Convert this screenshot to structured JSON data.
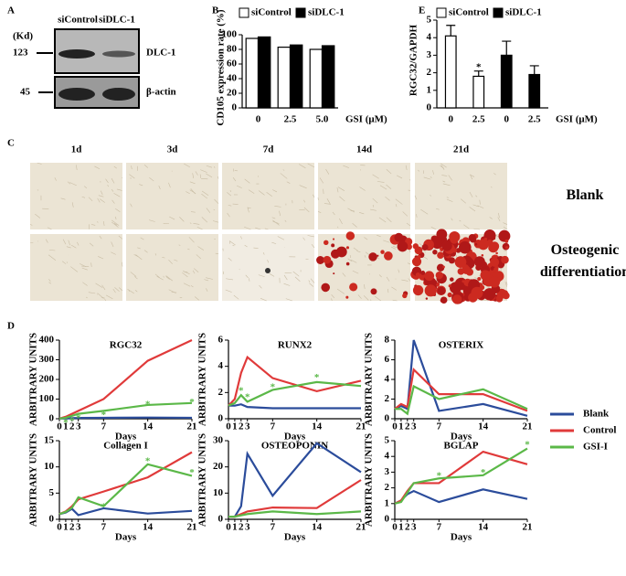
{
  "panel_labels": [
    "A",
    "B",
    "C",
    "D",
    "E"
  ],
  "blot": {
    "unit": "(Kd)",
    "columns": [
      "siControl",
      "siDLC-1"
    ],
    "markers": [
      "123",
      "45"
    ],
    "bands": [
      "DLC-1",
      "β-actin"
    ]
  },
  "micrographs": {
    "columns": [
      "1d",
      "3d",
      "7d",
      "14d",
      "21d"
    ],
    "rows": [
      "Blank",
      "Osteogenic differentiation"
    ]
  },
  "chart_data": [
    {
      "type": "bar",
      "ylabel": "CD105 expression rate (%)",
      "xlabel": "GSI (μM)",
      "categories": [
        "0",
        "2.5",
        "5.0"
      ],
      "ylim": [
        0,
        100
      ],
      "yticks": [
        0,
        20,
        40,
        60,
        80,
        100
      ],
      "series": [
        {
          "name": "siControl",
          "color": "#ffffff",
          "values": [
            95,
            83,
            80
          ]
        },
        {
          "name": "siDLC-1",
          "color": "#000000",
          "values": [
            97,
            86,
            85
          ]
        }
      ]
    },
    {
      "type": "bar",
      "ylabel": "RGC32/GAPDH",
      "xlabel": "GSI (μM)",
      "categories": [
        "0",
        "2.5",
        "0",
        "2.5"
      ],
      "ylim": [
        0,
        5
      ],
      "yticks": [
        0,
        1,
        2,
        3,
        4,
        5
      ],
      "series": [
        {
          "name": "siControl",
          "color": "#ffffff",
          "values": [
            4.1,
            1.8,
            null,
            null
          ],
          "errors": [
            0.6,
            0.3,
            null,
            null
          ]
        },
        {
          "name": "siDLC-1",
          "color": "#000000",
          "values": [
            null,
            null,
            3.0,
            1.9
          ],
          "errors": [
            null,
            null,
            0.8,
            0.5
          ]
        }
      ],
      "annotations": [
        {
          "text": "*",
          "x": 1,
          "y": 2.5
        }
      ]
    },
    {
      "type": "line",
      "title": "RGC32",
      "xlabel": "Days",
      "ylabel": "ARBITRARY UNITS",
      "x": [
        0,
        1,
        2,
        3,
        7,
        14,
        21
      ],
      "xlim": [
        0,
        21
      ],
      "xticks": [
        0,
        1,
        2,
        3,
        7,
        14,
        21
      ],
      "ylim": [
        0,
        400
      ],
      "yticks": [
        0,
        100,
        200,
        300,
        400
      ],
      "series": [
        {
          "name": "Blank",
          "color": "#2b4c9b",
          "values": [
            1,
            2,
            3,
            4,
            5,
            6,
            5
          ]
        },
        {
          "name": "Control",
          "color": "#e03a3a",
          "values": [
            1,
            10,
            25,
            40,
            100,
            295,
            400
          ]
        },
        {
          "name": "GSI-I",
          "color": "#5bb848",
          "values": [
            1,
            5,
            15,
            25,
            40,
            70,
            80
          ]
        }
      ],
      "annotations": [
        {
          "text": "*",
          "x": 1,
          "y": -10
        },
        {
          "text": "*",
          "x": 2,
          "y": 0
        },
        {
          "text": "*",
          "x": 3,
          "y": 15
        },
        {
          "text": "*",
          "x": 7,
          "y": 30
        },
        {
          "text": "*",
          "x": 14,
          "y": 85
        },
        {
          "text": "*",
          "x": 21,
          "y": 95
        }
      ]
    },
    {
      "type": "line",
      "title": "RUNX2",
      "xlabel": "Days",
      "ylabel": "ARBITRARY UNITS",
      "x": [
        0,
        1,
        2,
        3,
        7,
        14,
        21
      ],
      "xlim": [
        0,
        21
      ],
      "xticks": [
        0,
        1,
        2,
        3,
        7,
        14,
        21
      ],
      "ylim": [
        0,
        6
      ],
      "yticks": [
        0,
        2,
        4,
        6
      ],
      "series": [
        {
          "name": "Blank",
          "color": "#2b4c9b",
          "values": [
            1,
            1,
            1.1,
            0.9,
            0.8,
            0.8,
            0.8
          ]
        },
        {
          "name": "Control",
          "color": "#e03a3a",
          "values": [
            1,
            1.5,
            3.5,
            4.7,
            3.1,
            2.1,
            2.9
          ]
        },
        {
          "name": "GSI-I",
          "color": "#5bb848",
          "values": [
            1,
            1.2,
            1.8,
            1.3,
            2.2,
            2.8,
            2.5
          ]
        }
      ],
      "annotations": [
        {
          "text": "*",
          "x": 2,
          "y": 2.3
        },
        {
          "text": "*",
          "x": 3,
          "y": 1.8
        },
        {
          "text": "*",
          "x": 7,
          "y": 2.6
        },
        {
          "text": "*",
          "x": 14,
          "y": 3.3
        }
      ]
    },
    {
      "type": "line",
      "title": "OSTERIX",
      "xlabel": "Days",
      "ylabel": "ARBITRARY UNITS",
      "x": [
        0,
        1,
        2,
        3,
        7,
        14,
        21
      ],
      "xlim": [
        0,
        21
      ],
      "xticks": [
        0,
        1,
        2,
        3,
        7,
        14,
        21
      ],
      "ylim": [
        0,
        8
      ],
      "yticks": [
        0,
        2,
        4,
        6,
        8
      ],
      "series": [
        {
          "name": "Blank",
          "color": "#2b4c9b",
          "values": [
            1,
            1.3,
            1,
            8,
            0.8,
            1.5,
            0.3
          ]
        },
        {
          "name": "Control",
          "color": "#e03a3a",
          "values": [
            1,
            1.5,
            1.2,
            5,
            2.5,
            2.5,
            0.8
          ]
        },
        {
          "name": "GSI-I",
          "color": "#5bb848",
          "values": [
            1,
            1,
            0.5,
            3.3,
            2,
            3,
            1
          ]
        }
      ]
    },
    {
      "type": "line",
      "title": "Collagen I",
      "xlabel": "Days",
      "ylabel": "ARBITRARY UNITS",
      "x": [
        0,
        1,
        2,
        3,
        7,
        14,
        21
      ],
      "xlim": [
        0,
        21
      ],
      "xticks": [
        0,
        1,
        2,
        3,
        7,
        14,
        21
      ],
      "ylim": [
        0,
        15
      ],
      "yticks": [
        0,
        5,
        10,
        15
      ],
      "series": [
        {
          "name": "Blank",
          "color": "#2b4c9b",
          "values": [
            1,
            1.3,
            2,
            0.8,
            2.1,
            1.1,
            1.6
          ]
        },
        {
          "name": "Control",
          "color": "#e03a3a",
          "values": [
            1,
            1.5,
            2.5,
            3.8,
            5.3,
            8,
            12.8
          ]
        },
        {
          "name": "GSI-I",
          "color": "#5bb848",
          "values": [
            1,
            1.4,
            2.2,
            4.2,
            2.5,
            10.5,
            8.3
          ]
        }
      ],
      "annotations": [
        {
          "text": "*",
          "x": 7,
          "y": 2.8
        },
        {
          "text": "*",
          "x": 14,
          "y": 11.5
        },
        {
          "text": "*",
          "x": 21,
          "y": 9.3
        }
      ]
    },
    {
      "type": "line",
      "title": "OSTEOPONIN",
      "xlabel": "Days",
      "ylabel": "ARBITRARY UNITS",
      "x": [
        0,
        1,
        2,
        3,
        7,
        14,
        21
      ],
      "xlim": [
        0,
        21
      ],
      "xticks": [
        0,
        1,
        2,
        3,
        7,
        14,
        21
      ],
      "ylim": [
        0,
        30
      ],
      "yticks": [
        0,
        10,
        20,
        30
      ],
      "series": [
        {
          "name": "Blank",
          "color": "#2b4c9b",
          "values": [
            1,
            1,
            5,
            25,
            9,
            29,
            18
          ]
        },
        {
          "name": "Control",
          "color": "#e03a3a",
          "values": [
            1,
            1,
            2,
            3,
            4.5,
            4.3,
            15
          ]
        },
        {
          "name": "GSI-I",
          "color": "#5bb848",
          "values": [
            1,
            1,
            1.5,
            2,
            3,
            2,
            3
          ]
        }
      ]
    },
    {
      "type": "line",
      "title": "BGLAP",
      "xlabel": "Days",
      "ylabel": "ARBITRARY UNITS",
      "x": [
        0,
        1,
        2,
        3,
        7,
        14,
        21
      ],
      "xlim": [
        0,
        21
      ],
      "xticks": [
        0,
        1,
        2,
        3,
        7,
        14,
        21
      ],
      "ylim": [
        0,
        5
      ],
      "yticks": [
        0,
        1,
        2,
        3,
        4,
        5
      ],
      "series": [
        {
          "name": "Blank",
          "color": "#2b4c9b",
          "values": [
            1,
            1.2,
            1.6,
            1.8,
            1.1,
            1.9,
            1.3
          ]
        },
        {
          "name": "Control",
          "color": "#e03a3a",
          "values": [
            1,
            1.2,
            1.8,
            2.3,
            2.3,
            4.3,
            3.5
          ]
        },
        {
          "name": "GSI-I",
          "color": "#5bb848",
          "values": [
            1,
            1.1,
            1.7,
            2.3,
            2.6,
            2.8,
            4.5
          ]
        }
      ],
      "annotations": [
        {
          "text": "*",
          "x": 7,
          "y": 2.9
        },
        {
          "text": "*",
          "x": 14,
          "y": 3.1
        },
        {
          "text": "*",
          "x": 21,
          "y": 4.9
        }
      ]
    }
  ]
}
